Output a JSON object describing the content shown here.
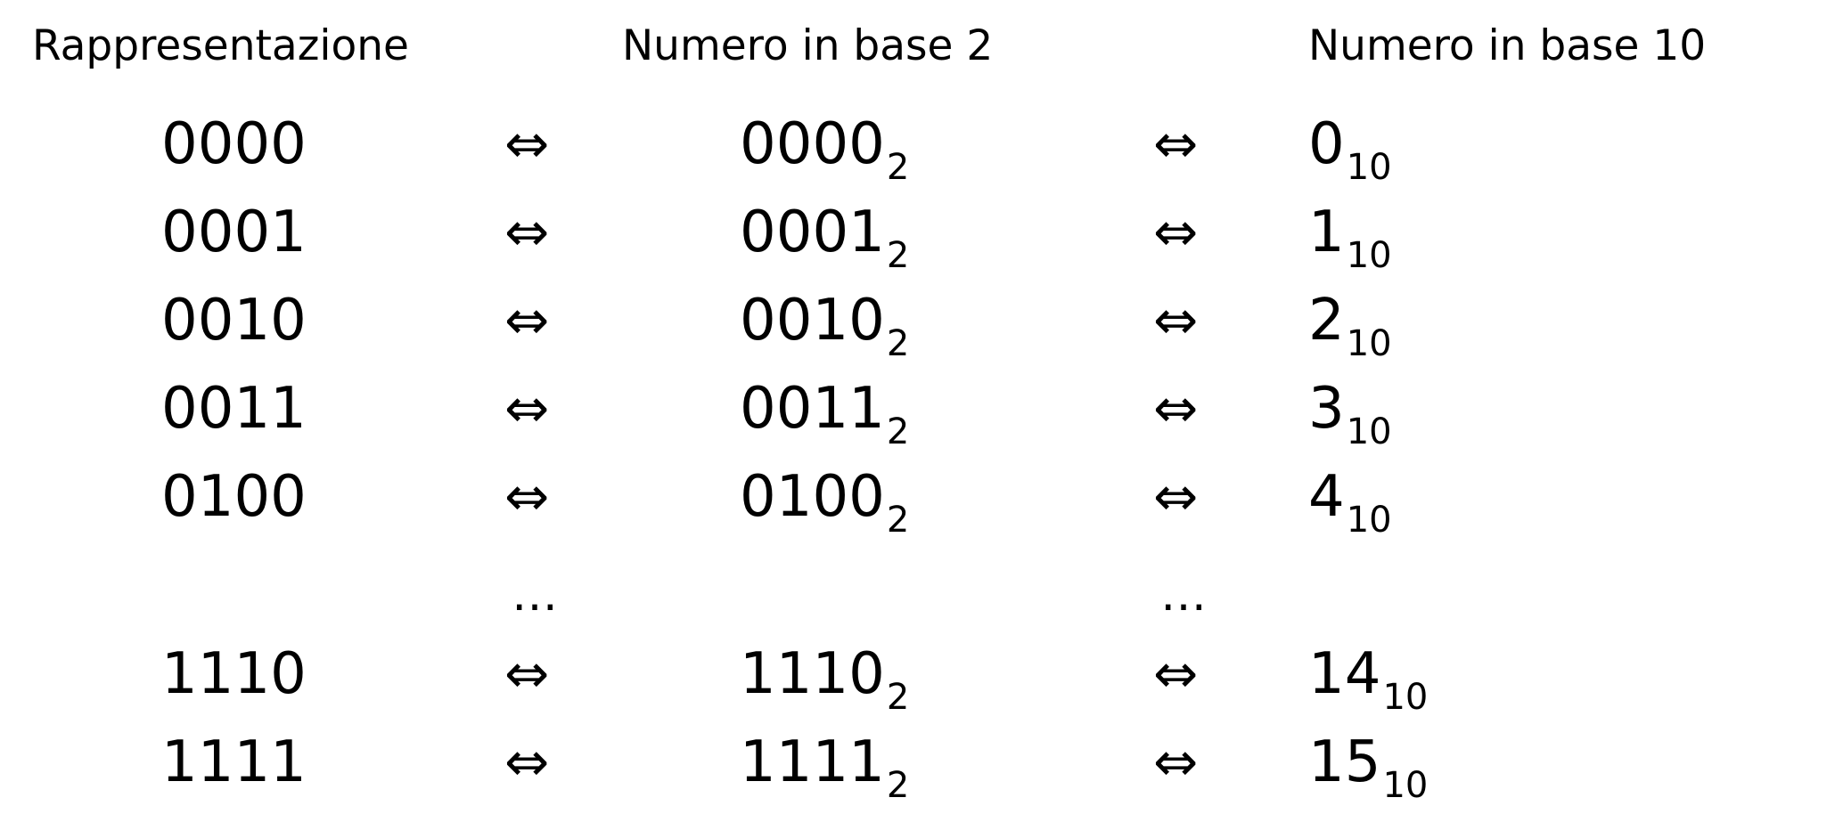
{
  "headers": {
    "representation": "Rappresentazione",
    "base2": "Numero in base 2",
    "base10": "Numero in base 10"
  },
  "arrow": "⇔",
  "ellipsis": "…",
  "rows": [
    {
      "rep": "0000",
      "b2": "0000",
      "b2_sub": "2",
      "b10": "0",
      "b10_sub": "10"
    },
    {
      "rep": "0001",
      "b2": "0001",
      "b2_sub": "2",
      "b10": "1",
      "b10_sub": "10"
    },
    {
      "rep": "0010",
      "b2": "0010",
      "b2_sub": "2",
      "b10": "2",
      "b10_sub": "10"
    },
    {
      "rep": "0011",
      "b2": "0011",
      "b2_sub": "2",
      "b10": "3",
      "b10_sub": "10"
    },
    {
      "rep": "0100",
      "b2": "0100",
      "b2_sub": "2",
      "b10": "4",
      "b10_sub": "10"
    },
    {
      "rep": "1110",
      "b2": "1110",
      "b2_sub": "2",
      "b10": "14",
      "b10_sub": "10"
    },
    {
      "rep": "1111",
      "b2": "1111",
      "b2_sub": "2",
      "b10": "15",
      "b10_sub": "10"
    }
  ]
}
